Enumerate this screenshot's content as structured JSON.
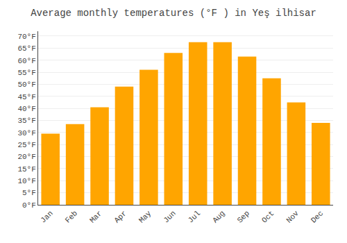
{
  "chart_data": {
    "type": "bar",
    "title": "Average monthly temperatures (°F ) in Yeş ilhisar",
    "categories": [
      "Jan",
      "Feb",
      "Mar",
      "Apr",
      "May",
      "Jun",
      "Jul",
      "Aug",
      "Sep",
      "Oct",
      "Nov",
      "Dec"
    ],
    "values": [
      29.5,
      33.5,
      40.5,
      49.0,
      56.0,
      63.0,
      67.5,
      67.5,
      61.5,
      52.5,
      42.5,
      34.0
    ],
    "color": "#FFA500",
    "ylim": [
      0,
      72
    ],
    "yticks": [
      {
        "value": 0,
        "label": "0°F"
      },
      {
        "value": 5,
        "label": "5°F"
      },
      {
        "value": 10,
        "label": "10°F"
      },
      {
        "value": 15,
        "label": "15°F"
      },
      {
        "value": 20,
        "label": "20°F"
      },
      {
        "value": 25,
        "label": "25°F"
      },
      {
        "value": 30,
        "label": "30°F"
      },
      {
        "value": 35,
        "label": "35°F"
      },
      {
        "value": 40,
        "label": "40°F"
      },
      {
        "value": 45,
        "label": "45°F"
      },
      {
        "value": 50,
        "label": "50°F"
      },
      {
        "value": 55,
        "label": "55°F"
      },
      {
        "value": 60,
        "label": "60°F"
      },
      {
        "value": 65,
        "label": "65°F"
      },
      {
        "value": 70,
        "label": "70°F"
      }
    ],
    "grid": true
  }
}
